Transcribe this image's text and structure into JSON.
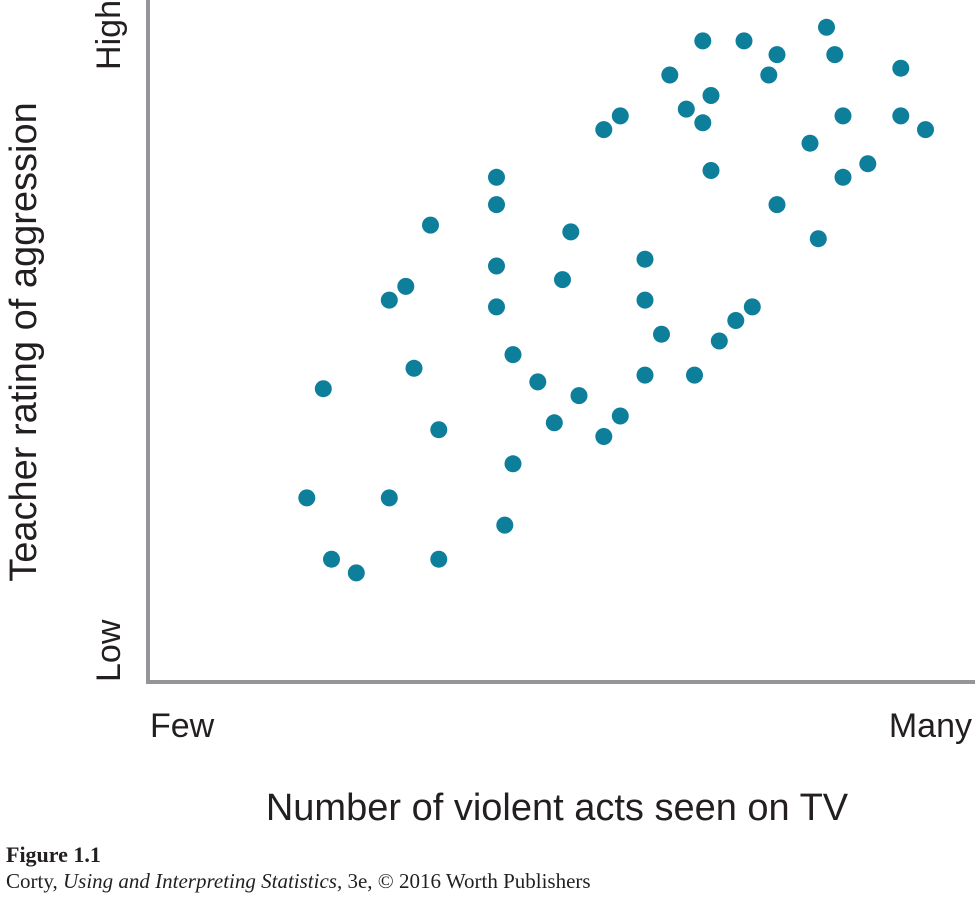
{
  "chart_data": {
    "type": "scatter",
    "title": "",
    "xlabel": "Number of violent acts seen on TV",
    "ylabel": "Teacher rating of aggression",
    "x_tick_labels": {
      "low": "Few",
      "high": "Many"
    },
    "y_tick_labels": {
      "low": "Low",
      "high": "High"
    },
    "xlim": [
      0,
      100
    ],
    "ylim": [
      0,
      100
    ],
    "grid": false,
    "marker_color": "#0e7f9a",
    "axis_color": "#939598",
    "points": [
      {
        "x": 19,
        "y": 27
      },
      {
        "x": 21,
        "y": 43
      },
      {
        "x": 22,
        "y": 18
      },
      {
        "x": 25,
        "y": 16
      },
      {
        "x": 29,
        "y": 56
      },
      {
        "x": 29,
        "y": 27
      },
      {
        "x": 31,
        "y": 58
      },
      {
        "x": 32,
        "y": 46
      },
      {
        "x": 34,
        "y": 67
      },
      {
        "x": 35,
        "y": 37
      },
      {
        "x": 35,
        "y": 18
      },
      {
        "x": 42,
        "y": 74
      },
      {
        "x": 42,
        "y": 70
      },
      {
        "x": 42,
        "y": 61
      },
      {
        "x": 42,
        "y": 55
      },
      {
        "x": 43,
        "y": 23
      },
      {
        "x": 44,
        "y": 48
      },
      {
        "x": 44,
        "y": 32
      },
      {
        "x": 47,
        "y": 44
      },
      {
        "x": 49,
        "y": 38
      },
      {
        "x": 50,
        "y": 59
      },
      {
        "x": 51,
        "y": 66
      },
      {
        "x": 52,
        "y": 42
      },
      {
        "x": 55,
        "y": 81
      },
      {
        "x": 55,
        "y": 36
      },
      {
        "x": 57,
        "y": 83
      },
      {
        "x": 57,
        "y": 39
      },
      {
        "x": 60,
        "y": 62
      },
      {
        "x": 60,
        "y": 56
      },
      {
        "x": 60,
        "y": 45
      },
      {
        "x": 62,
        "y": 51
      },
      {
        "x": 63,
        "y": 89
      },
      {
        "x": 65,
        "y": 84
      },
      {
        "x": 66,
        "y": 45
      },
      {
        "x": 67,
        "y": 94
      },
      {
        "x": 67,
        "y": 82
      },
      {
        "x": 68,
        "y": 86
      },
      {
        "x": 68,
        "y": 75
      },
      {
        "x": 69,
        "y": 50
      },
      {
        "x": 71,
        "y": 53
      },
      {
        "x": 72,
        "y": 94
      },
      {
        "x": 73,
        "y": 55
      },
      {
        "x": 75,
        "y": 89
      },
      {
        "x": 76,
        "y": 92
      },
      {
        "x": 76,
        "y": 70
      },
      {
        "x": 80,
        "y": 79
      },
      {
        "x": 81,
        "y": 65
      },
      {
        "x": 82,
        "y": 96
      },
      {
        "x": 83,
        "y": 92
      },
      {
        "x": 84,
        "y": 83
      },
      {
        "x": 84,
        "y": 74
      },
      {
        "x": 87,
        "y": 76
      },
      {
        "x": 91,
        "y": 90
      },
      {
        "x": 91,
        "y": 83
      },
      {
        "x": 94,
        "y": 81
      }
    ]
  },
  "caption": {
    "figure_label": "Figure 1.1",
    "author": "Corty, ",
    "book_title": "Using and Interpreting Statistics,",
    "edition_rest": " 3e, © 2016 Worth Publishers"
  }
}
